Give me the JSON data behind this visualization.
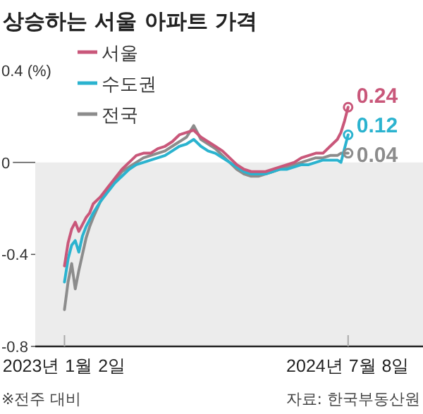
{
  "chart_data": {
    "type": "line",
    "title": "상승하는 서울 아파트 가격",
    "x": [
      "2023-01-02",
      "2023-01-09",
      "2023-01-16",
      "2023-01-23",
      "2023-01-30",
      "2023-02-06",
      "2023-02-13",
      "2023-02-20",
      "2023-02-27",
      "2023-03-13",
      "2023-03-27",
      "2023-04-10",
      "2023-04-24",
      "2023-05-08",
      "2023-05-22",
      "2023-06-05",
      "2023-06-19",
      "2023-07-03",
      "2023-07-17",
      "2023-07-31",
      "2023-08-14",
      "2023-08-28",
      "2023-09-11",
      "2023-09-25",
      "2023-10-09",
      "2023-10-23",
      "2023-11-06",
      "2023-11-20",
      "2023-12-04",
      "2023-12-18",
      "2024-01-01",
      "2024-01-15",
      "2024-01-29",
      "2024-02-12",
      "2024-02-26",
      "2024-03-11",
      "2024-03-25",
      "2024-04-08",
      "2024-04-22",
      "2024-05-06",
      "2024-05-20",
      "2024-06-03",
      "2024-06-17",
      "2024-06-24",
      "2024-07-01",
      "2024-07-08"
    ],
    "series": [
      {
        "name": "서울",
        "color": "#c9577a",
        "values": [
          -0.45,
          -0.35,
          -0.29,
          -0.26,
          -0.3,
          -0.27,
          -0.24,
          -0.22,
          -0.18,
          -0.15,
          -0.11,
          -0.07,
          -0.03,
          0,
          0.03,
          0.04,
          0.04,
          0.06,
          0.07,
          0.09,
          0.12,
          0.13,
          0.14,
          0.11,
          0.09,
          0.07,
          0.05,
          0.02,
          -0.01,
          -0.03,
          -0.04,
          -0.04,
          -0.04,
          -0.03,
          -0.02,
          -0.01,
          0,
          0.02,
          0.03,
          0.04,
          0.04,
          0.07,
          0.1,
          0.13,
          0.18,
          0.24
        ],
        "value_labels": [
          null,
          null,
          null,
          null,
          null,
          null,
          null,
          null,
          null,
          null,
          null,
          null,
          null,
          null,
          null,
          null,
          null,
          null,
          null,
          null,
          null,
          null,
          null,
          null,
          null,
          null,
          null,
          null,
          null,
          null,
          null,
          null,
          null,
          null,
          null,
          null,
          null,
          null,
          null,
          null,
          null,
          null,
          null,
          null,
          null,
          "0.24"
        ]
      },
      {
        "name": "수도권",
        "color": "#2bb3cf",
        "values": [
          -0.52,
          -0.42,
          -0.36,
          -0.34,
          -0.39,
          -0.32,
          -0.28,
          -0.25,
          -0.22,
          -0.17,
          -0.13,
          -0.09,
          -0.06,
          -0.03,
          -0.01,
          0,
          0.01,
          0.02,
          0.03,
          0.05,
          0.07,
          0.08,
          0.1,
          0.07,
          0.05,
          0.04,
          0.02,
          0,
          -0.02,
          -0.04,
          -0.05,
          -0.05,
          -0.05,
          -0.04,
          -0.03,
          -0.03,
          -0.02,
          -0.01,
          -0.01,
          0,
          0.01,
          0.01,
          0.01,
          0,
          0.06,
          0.12
        ],
        "value_labels": [
          null,
          null,
          null,
          null,
          null,
          null,
          null,
          null,
          null,
          null,
          null,
          null,
          null,
          null,
          null,
          null,
          null,
          null,
          null,
          null,
          null,
          null,
          null,
          null,
          null,
          null,
          null,
          null,
          null,
          null,
          null,
          null,
          null,
          null,
          null,
          null,
          null,
          null,
          null,
          null,
          null,
          null,
          null,
          null,
          null,
          "0.12"
        ]
      },
      {
        "name": "전국",
        "color": "#8c8c8c",
        "values": [
          -0.64,
          -0.52,
          -0.44,
          -0.55,
          -0.47,
          -0.4,
          -0.33,
          -0.28,
          -0.24,
          -0.17,
          -0.12,
          -0.08,
          -0.04,
          -0.02,
          0,
          0.02,
          0.03,
          0.04,
          0.05,
          0.07,
          0.09,
          0.11,
          0.16,
          0.1,
          0.08,
          0.06,
          0.03,
          0,
          -0.03,
          -0.05,
          -0.06,
          -0.06,
          -0.05,
          -0.04,
          -0.03,
          -0.02,
          -0.01,
          0,
          0.01,
          0.02,
          0.02,
          0.03,
          0.03,
          0.04,
          0.04,
          0.04
        ],
        "value_labels": [
          null,
          null,
          null,
          null,
          null,
          null,
          null,
          null,
          null,
          null,
          null,
          null,
          null,
          null,
          null,
          null,
          null,
          null,
          null,
          null,
          null,
          null,
          null,
          null,
          null,
          null,
          null,
          null,
          null,
          null,
          null,
          null,
          null,
          null,
          null,
          null,
          null,
          null,
          null,
          null,
          null,
          null,
          null,
          null,
          null,
          "0.04"
        ]
      }
    ],
    "xlim": [
      "2022-11-06",
      "2024-12-01"
    ],
    "xticks": [
      {
        "value": "2023-01-02",
        "label": "2023년 1월 2일"
      },
      {
        "value": "2024-07-08",
        "label": "2024년 7월 8일"
      }
    ],
    "ylim": [
      -0.8,
      0.4
    ],
    "yticks": [
      {
        "value": 0.4,
        "label": "0.4 (%)"
      },
      0,
      -0.4,
      -0.8
    ],
    "bands": [
      {
        "axis": "y",
        "from": -0.8,
        "to": 0,
        "color": "#ececec"
      }
    ],
    "legend": "top left",
    "annotations": [
      "※전주 대비",
      "자료: 한국부동산원"
    ]
  }
}
